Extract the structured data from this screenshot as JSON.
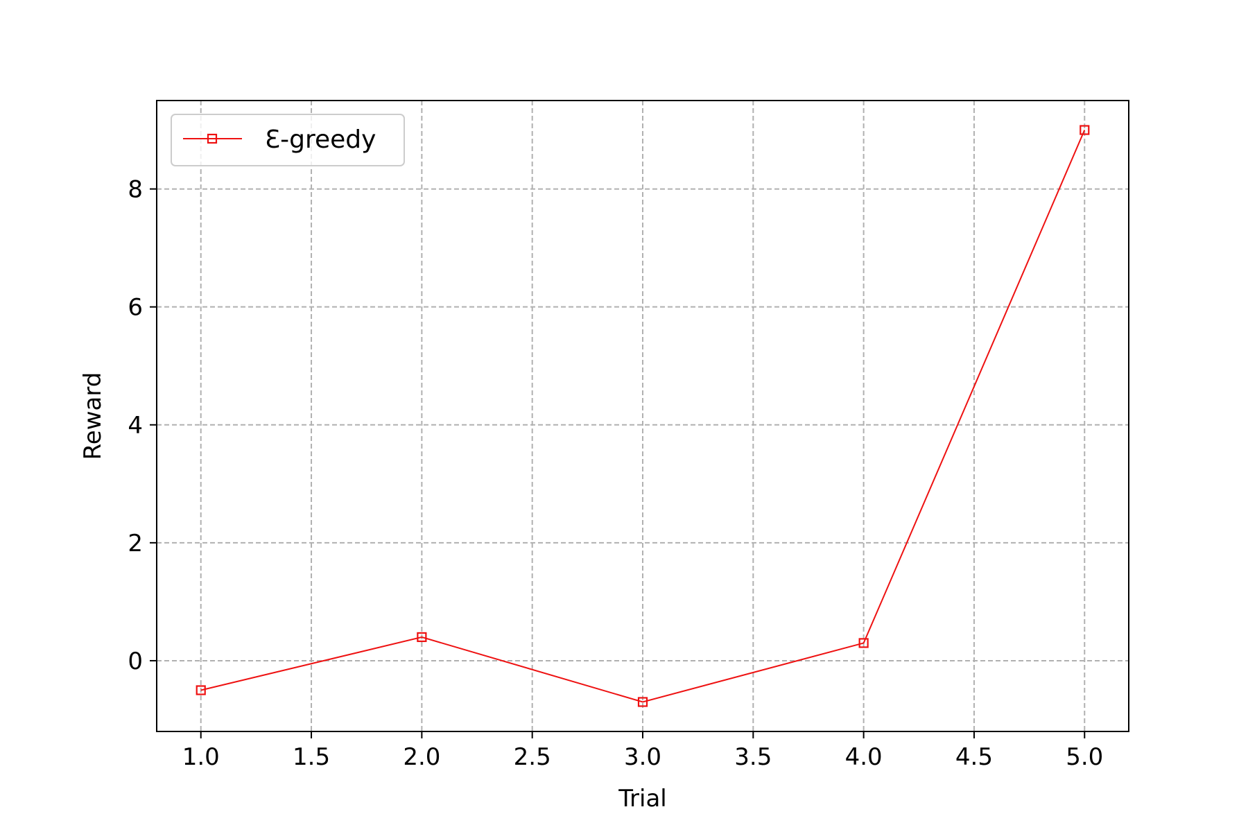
{
  "chart_data": {
    "type": "line",
    "xlabel": "Trial",
    "ylabel": "Reward",
    "xlim": [
      0.8,
      5.2
    ],
    "ylim": [
      -1.2,
      9.5
    ],
    "x_ticks": [
      1.0,
      1.5,
      2.0,
      2.5,
      3.0,
      3.5,
      4.0,
      4.5,
      5.0
    ],
    "x_tick_labels": [
      "1.0",
      "1.5",
      "2.0",
      "2.5",
      "3.0",
      "3.5",
      "4.0",
      "4.5",
      "5.0"
    ],
    "y_ticks": [
      0,
      2,
      4,
      6,
      8
    ],
    "y_tick_labels": [
      "0",
      "2",
      "4",
      "6",
      "8"
    ],
    "grid": true,
    "legend_position": "top-left",
    "series": [
      {
        "name": "Ɛ-greedy",
        "color": "#ee1111",
        "marker": "square",
        "x": [
          1,
          2,
          3,
          4,
          5
        ],
        "y": [
          -0.5,
          0.4,
          -0.7,
          0.3,
          9.0
        ]
      }
    ]
  }
}
